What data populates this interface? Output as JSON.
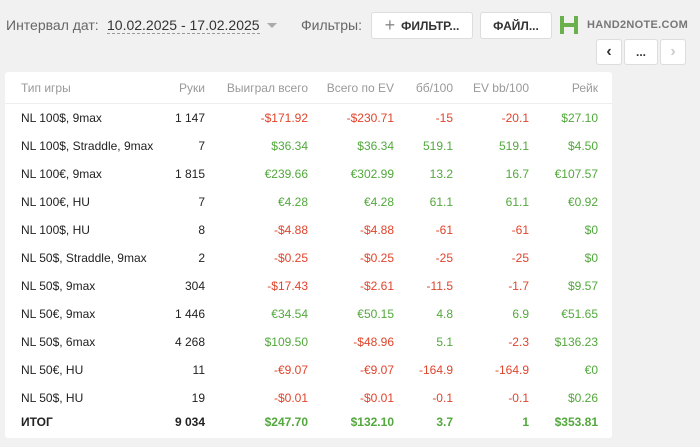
{
  "header": {
    "date_label": "Интервал дат:",
    "date_range": "10.02.2025 - 17.02.2025",
    "filters_label": "Фильтры:",
    "filter_button": "ФИЛЬТР...",
    "file_button": "ФАЙЛ...",
    "logo": "HAND2NOTE.COM",
    "more_button": "..."
  },
  "table": {
    "columns": [
      "Тип игры",
      "Руки",
      "Выиграл всего",
      "Всего по EV",
      "бб/100",
      "EV bb/100",
      "Рейк"
    ],
    "rows": [
      [
        "NL 100$, 9max",
        "1 147",
        "-$171.92",
        "-$230.71",
        "-15",
        "-20.1",
        "$27.10"
      ],
      [
        "NL 100$, Straddle, 9max",
        "7",
        "$36.34",
        "$36.34",
        "519.1",
        "519.1",
        "$4.50"
      ],
      [
        "NL 100€, 9max",
        "1 815",
        "€239.66",
        "€302.99",
        "13.2",
        "16.7",
        "€107.57"
      ],
      [
        "NL 100€, HU",
        "7",
        "€4.28",
        "€4.28",
        "61.1",
        "61.1",
        "€0.92"
      ],
      [
        "NL 100$, HU",
        "8",
        "-$4.88",
        "-$4.88",
        "-61",
        "-61",
        "$0"
      ],
      [
        "NL 50$, Straddle, 9max",
        "2",
        "-$0.25",
        "-$0.25",
        "-25",
        "-25",
        "$0"
      ],
      [
        "NL 50$, 9max",
        "304",
        "-$17.43",
        "-$2.61",
        "-11.5",
        "-1.7",
        "$9.57"
      ],
      [
        "NL 50€, 9max",
        "1 446",
        "€34.54",
        "€50.15",
        "4.8",
        "6.9",
        "€51.65"
      ],
      [
        "NL 50$, 6max",
        "4 268",
        "$109.50",
        "-$48.96",
        "5.1",
        "-2.3",
        "$136.23"
      ],
      [
        "NL 50€, HU",
        "11",
        "-€9.07",
        "-€9.07",
        "-164.9",
        "-164.9",
        "€0"
      ],
      [
        "NL 50$, HU",
        "19",
        "-$0.01",
        "-$0.01",
        "-0.1",
        "-0.1",
        "$0.26"
      ]
    ],
    "total": [
      "ИТОГ",
      "9 034",
      "$247.70",
      "$132.10",
      "3.7",
      "1",
      "$353.81"
    ]
  }
}
